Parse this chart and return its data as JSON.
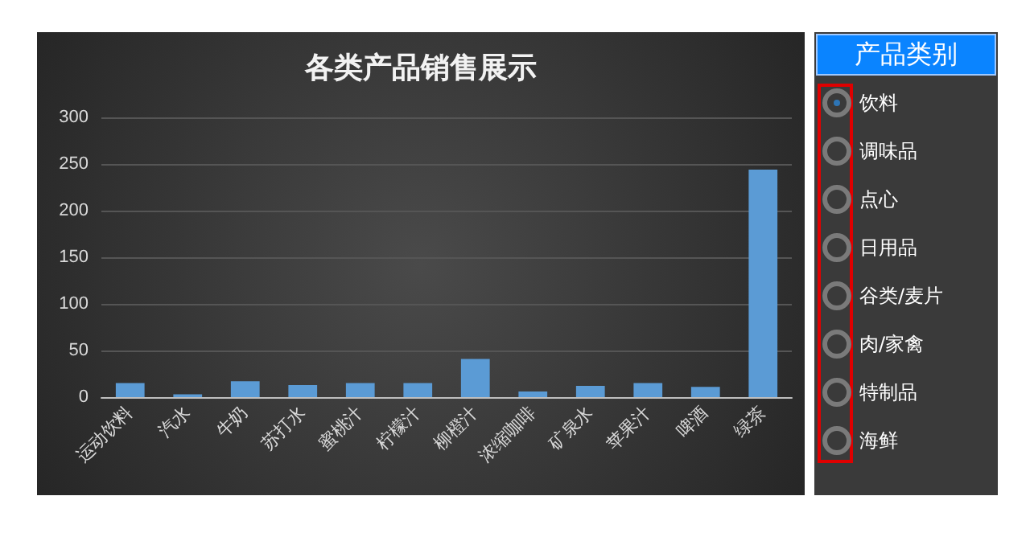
{
  "chart_data": [
    {
      "type": "bar",
      "title": "各类产品销售展示",
      "categories": [
        "运动饮料",
        "汽水",
        "牛奶",
        "苏打水",
        "蜜桃汁",
        "柠檬汁",
        "柳橙汁",
        "浓缩咖啡",
        "矿泉水",
        "苹果汁",
        "啤酒",
        "绿茶"
      ],
      "values": [
        15,
        3,
        17,
        13,
        15,
        15,
        41,
        6,
        12,
        15,
        11,
        244
      ],
      "color": "#5b9bd5",
      "ylim": [
        0,
        300
      ],
      "yticks": [
        0,
        50,
        100,
        150,
        200,
        250,
        300
      ],
      "grid": "y"
    },
    {
      "type": "other",
      "title": "产品类别",
      "annotations": [
        "饮料",
        "调味品",
        "点心",
        "日用品",
        "谷类/麦片",
        "肉/家禽",
        "特制品",
        "海鲜"
      ]
    }
  ]
}
